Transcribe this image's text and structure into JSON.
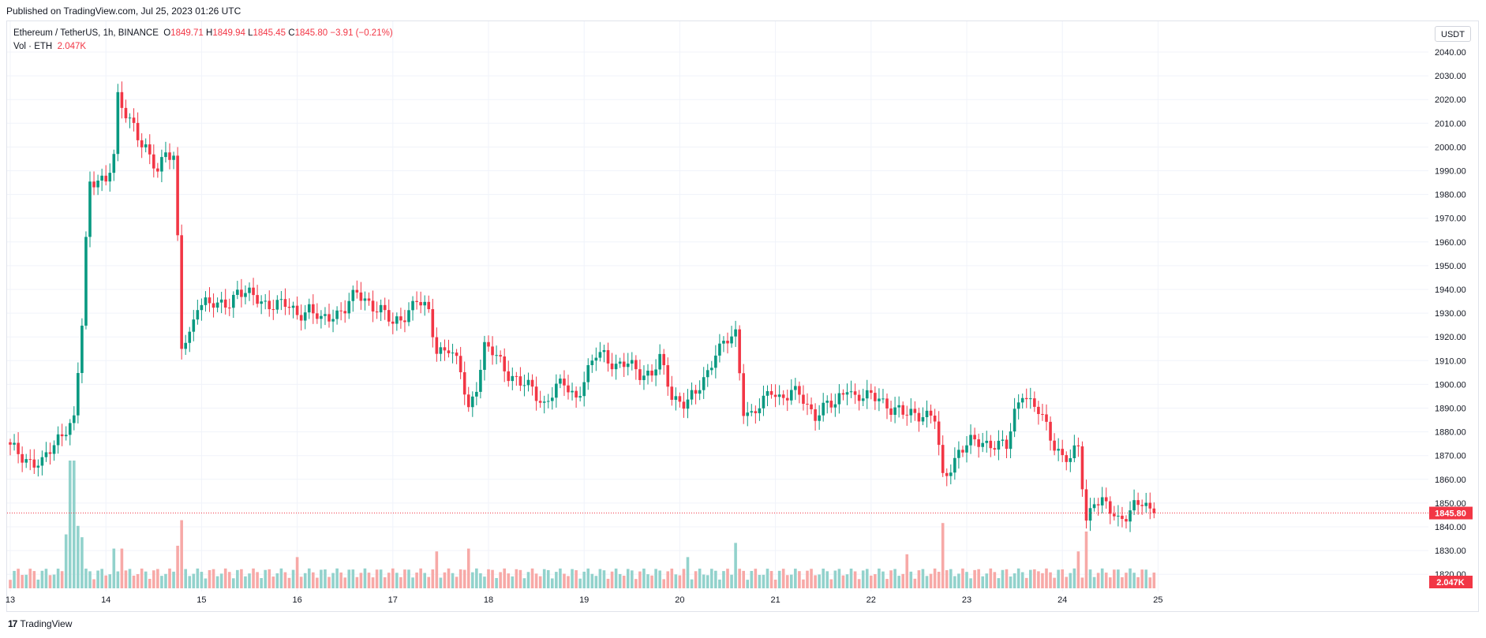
{
  "header": {
    "published": "Published on TradingView.com, Jul 25, 2023 01:26 UTC"
  },
  "legend": {
    "symbol": "Ethereum / TetherUS, 1h, BINANCE",
    "o_label": "O",
    "o_value": "1849.71",
    "h_label": "H",
    "h_value": "1849.94",
    "l_label": "L",
    "l_value": "1845.45",
    "c_label": "C",
    "c_value": "1845.80",
    "change": "−3.91 (−0.21%)",
    "vol_label": "Vol · ETH",
    "vol_value": "2.047K"
  },
  "currency": "USDT",
  "footer": {
    "brand": "TradingView",
    "mark": "17"
  },
  "colors": {
    "up": "#089981",
    "down": "#f23645",
    "up_vol": "#92d2cc",
    "down_vol": "#f7a9a7",
    "grid": "#f0f3fa"
  },
  "chart_data": {
    "type": "candlestick",
    "y_ticks": [
      "2040.00",
      "2030.00",
      "2020.00",
      "2010.00",
      "2000.00",
      "1990.00",
      "1980.00",
      "1970.00",
      "1960.00",
      "1950.00",
      "1940.00",
      "1930.00",
      "1920.00",
      "1910.00",
      "1900.00",
      "1890.00",
      "1880.00",
      "1870.00",
      "1860.00",
      "1850.00",
      "1840.00",
      "1830.00",
      "1820.00"
    ],
    "ylim": [
      1817,
      2047
    ],
    "x_ticks": [
      "13",
      "14",
      "15",
      "16",
      "17",
      "18",
      "19",
      "20",
      "21",
      "22",
      "23",
      "24",
      "25"
    ],
    "last_price": 1845.8,
    "last_price_label": "1845.80",
    "last_volume_label": "2.047K",
    "price_path": [
      [
        0,
        1873
      ],
      [
        6,
        1867
      ],
      [
        8,
        1866
      ],
      [
        10,
        1872
      ],
      [
        12,
        1878
      ],
      [
        14,
        1882
      ],
      [
        16,
        1884
      ],
      [
        18,
        1925
      ],
      [
        19,
        1960
      ],
      [
        20,
        1985
      ],
      [
        22,
        1988
      ],
      [
        24,
        1985
      ],
      [
        26,
        1995
      ],
      [
        27,
        2020
      ],
      [
        29,
        2015
      ],
      [
        31,
        2010
      ],
      [
        33,
        2000
      ],
      [
        35,
        1995
      ],
      [
        37,
        1990
      ],
      [
        39,
        2000
      ],
      [
        41,
        1995
      ],
      [
        42,
        1960
      ],
      [
        43,
        1915
      ],
      [
        45,
        1920
      ],
      [
        47,
        1935
      ],
      [
        49,
        1935
      ],
      [
        52,
        1932
      ],
      [
        55,
        1935
      ],
      [
        57,
        1940
      ],
      [
        60,
        1937
      ],
      [
        63,
        1935
      ],
      [
        66,
        1934
      ],
      [
        69,
        1933
      ],
      [
        72,
        1930
      ],
      [
        75,
        1932
      ],
      [
        78,
        1926
      ],
      [
        81,
        1930
      ],
      [
        84,
        1932
      ],
      [
        87,
        1938
      ],
      [
        90,
        1935
      ],
      [
        93,
        1931
      ],
      [
        96,
        1925
      ],
      [
        99,
        1930
      ],
      [
        102,
        1935
      ],
      [
        105,
        1930
      ],
      [
        107,
        1915
      ],
      [
        110,
        1915
      ],
      [
        113,
        1905
      ],
      [
        115,
        1890
      ],
      [
        117,
        1900
      ],
      [
        119,
        1915
      ],
      [
        121,
        1913
      ],
      [
        123,
        1910
      ],
      [
        125,
        1905
      ],
      [
        128,
        1900
      ],
      [
        131,
        1898
      ],
      [
        134,
        1892
      ],
      [
        137,
        1898
      ],
      [
        139,
        1900
      ],
      [
        142,
        1895
      ],
      [
        145,
        1905
      ],
      [
        147,
        1912
      ],
      [
        149,
        1913
      ],
      [
        152,
        1908
      ],
      [
        155,
        1908
      ],
      [
        158,
        1905
      ],
      [
        161,
        1905
      ],
      [
        163,
        1910
      ],
      [
        166,
        1895
      ],
      [
        169,
        1893
      ],
      [
        172,
        1895
      ],
      [
        175,
        1905
      ],
      [
        177,
        1915
      ],
      [
        180,
        1918
      ],
      [
        182,
        1920
      ],
      [
        184,
        1890
      ],
      [
        186,
        1888
      ],
      [
        189,
        1892
      ],
      [
        191,
        1897
      ],
      [
        193,
        1895
      ],
      [
        196,
        1897
      ],
      [
        198,
        1895
      ],
      [
        200,
        1890
      ],
      [
        202,
        1888
      ],
      [
        205,
        1892
      ],
      [
        207,
        1890
      ],
      [
        210,
        1900
      ],
      [
        212,
        1895
      ],
      [
        215,
        1894
      ],
      [
        218,
        1895
      ],
      [
        221,
        1890
      ],
      [
        224,
        1887
      ],
      [
        226,
        1888
      ],
      [
        229,
        1888
      ],
      [
        232,
        1885
      ],
      [
        234,
        1860
      ],
      [
        236,
        1866
      ],
      [
        238,
        1872
      ],
      [
        241,
        1875
      ],
      [
        244,
        1876
      ],
      [
        247,
        1875
      ],
      [
        250,
        1873
      ],
      [
        252,
        1888
      ],
      [
        254,
        1898
      ],
      [
        256,
        1892
      ],
      [
        258,
        1888
      ],
      [
        260,
        1882
      ],
      [
        262,
        1875
      ],
      [
        264,
        1870
      ],
      [
        266,
        1868
      ],
      [
        268,
        1873
      ],
      [
        270,
        1843
      ],
      [
        272,
        1852
      ],
      [
        274,
        1850
      ],
      [
        276,
        1846
      ],
      [
        278,
        1843
      ],
      [
        280,
        1846
      ],
      [
        282,
        1849
      ],
      [
        284,
        1849
      ],
      [
        286,
        1846
      ]
    ],
    "volume_spikes": [
      [
        14,
        19
      ],
      [
        15,
        45
      ],
      [
        16,
        45
      ],
      [
        17,
        22
      ],
      [
        18,
        18
      ],
      [
        26,
        14
      ],
      [
        28,
        14
      ],
      [
        42,
        15
      ],
      [
        43,
        24
      ],
      [
        72,
        11
      ],
      [
        107,
        13
      ],
      [
        115,
        14
      ],
      [
        170,
        11
      ],
      [
        182,
        16
      ],
      [
        225,
        12
      ],
      [
        234,
        23
      ],
      [
        258,
        6
      ],
      [
        268,
        13
      ],
      [
        270,
        20
      ]
    ]
  }
}
